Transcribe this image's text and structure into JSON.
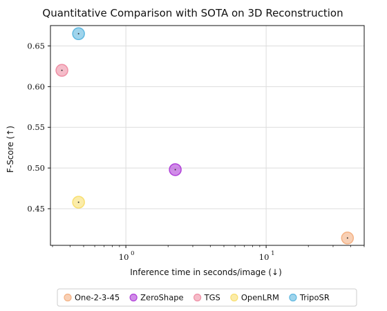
{
  "chart_data": {
    "type": "scatter",
    "title": "Quantitative Comparison with SOTA on 3D Reconstruction",
    "xlabel": "Inference time in seconds/image (↓)",
    "ylabel": "F-Score (↑)",
    "xscale": "log",
    "xlim": [
      0.29,
      50
    ],
    "ylim": [
      0.405,
      0.675
    ],
    "x_ticks": [
      {
        "value": 1,
        "label": "10",
        "exp": "0"
      },
      {
        "value": 10,
        "label": "10",
        "exp": "1"
      }
    ],
    "y_ticks": [
      {
        "value": 0.45,
        "label": "0.45"
      },
      {
        "value": 0.5,
        "label": "0.50"
      },
      {
        "value": 0.55,
        "label": "0.55"
      },
      {
        "value": 0.6,
        "label": "0.60"
      },
      {
        "value": 0.65,
        "label": "0.65"
      }
    ],
    "grid": true,
    "legend_position": "bottom",
    "series": [
      {
        "name": "One-2-3-45",
        "color": "#f4b183",
        "x": [
          38
        ],
        "y": [
          0.414
        ]
      },
      {
        "name": "ZeroShape",
        "color": "#b040d8",
        "x": [
          2.25
        ],
        "y": [
          0.498
        ]
      },
      {
        "name": "TGS",
        "color": "#ef8fa5",
        "x": [
          0.35
        ],
        "y": [
          0.62
        ]
      },
      {
        "name": "OpenLRM",
        "color": "#f8df70",
        "x": [
          0.46
        ],
        "y": [
          0.458
        ]
      },
      {
        "name": "TripoSR",
        "color": "#5fb8e0",
        "x": [
          0.46
        ],
        "y": [
          0.665
        ]
      }
    ]
  }
}
